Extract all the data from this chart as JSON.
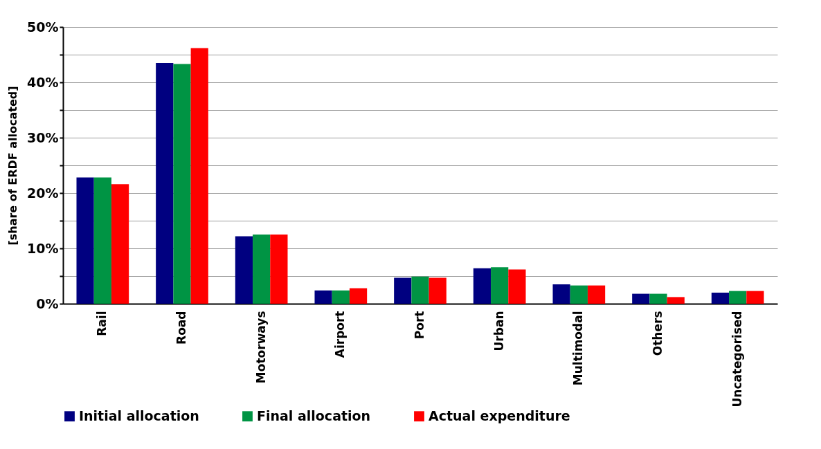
{
  "chart_data": {
    "type": "bar",
    "ylabel": "[share of ERDF allocated]",
    "categories": [
      "Rail",
      "Road",
      "Motorways",
      "Airport",
      "Port",
      "Urban",
      "Multimodal",
      "Others",
      "Uncategorised"
    ],
    "series": [
      {
        "name": "Initial allocation",
        "color": "#000080",
        "values": [
          22.8,
          43.5,
          12.2,
          2.4,
          4.7,
          6.4,
          3.5,
          1.8,
          2.0
        ]
      },
      {
        "name": "Final allocation",
        "color": "#009444",
        "values": [
          22.8,
          43.3,
          12.5,
          2.4,
          4.9,
          6.6,
          3.3,
          1.8,
          2.3
        ]
      },
      {
        "name": "Actual expenditure",
        "color": "#ff0000",
        "values": [
          21.6,
          46.2,
          12.5,
          2.8,
          4.7,
          6.2,
          3.3,
          1.2,
          2.3
        ]
      }
    ],
    "ylim": [
      0,
      50
    ],
    "yticks": [
      {
        "value": 0,
        "label": "0%"
      },
      {
        "value": 5,
        "label": null
      },
      {
        "value": 10,
        "label": "10%"
      },
      {
        "value": 15,
        "label": null
      },
      {
        "value": 20,
        "label": "20%"
      },
      {
        "value": 25,
        "label": null
      },
      {
        "value": 30,
        "label": "30%"
      },
      {
        "value": 35,
        "label": null
      },
      {
        "value": 40,
        "label": "40%"
      },
      {
        "value": 45,
        "label": null
      },
      {
        "value": 50,
        "label": "50%"
      }
    ],
    "grid": "y",
    "legend": "bottom"
  }
}
